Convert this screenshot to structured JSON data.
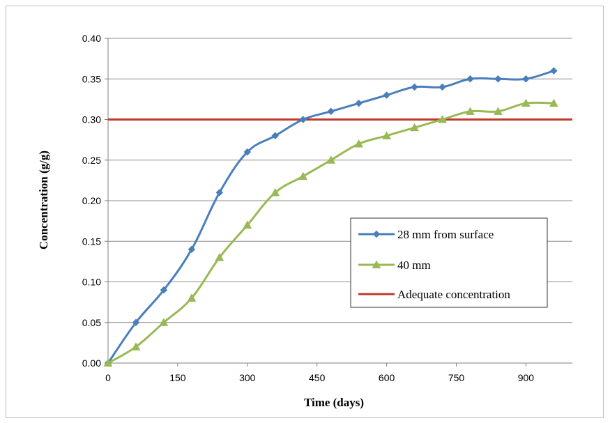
{
  "chart_data": {
    "type": "line",
    "title": "",
    "xlabel": "Time (days)",
    "ylabel": "Concentration (g/g)",
    "xlim": [
      0,
      1000
    ],
    "ylim": [
      0,
      0.4
    ],
    "xticks": [
      0,
      150,
      300,
      450,
      600,
      750,
      900
    ],
    "xtick_labels": [
      "0",
      "150",
      "300",
      "450",
      "600",
      "750",
      "900"
    ],
    "yticks": [
      0,
      0.05,
      0.1,
      0.15,
      0.2,
      0.25,
      0.3,
      0.35,
      0.4
    ],
    "ytick_labels": [
      "0.00",
      "0.05",
      "0.10",
      "0.15",
      "0.20",
      "0.25",
      "0.30",
      "0.35",
      "0.40"
    ],
    "grid": "horizontal",
    "legend_position": "right",
    "series": [
      {
        "name": "28 mm  from surface",
        "color": "#4a7ebb",
        "marker": "diamond",
        "x": [
          0,
          60,
          120,
          180,
          240,
          300,
          360,
          420,
          480,
          540,
          600,
          660,
          720,
          780,
          840,
          900,
          960
        ],
        "y": [
          0.0,
          0.05,
          0.09,
          0.14,
          0.21,
          0.26,
          0.28,
          0.3,
          0.31,
          0.32,
          0.33,
          0.34,
          0.34,
          0.35,
          0.35,
          0.35,
          0.36
        ]
      },
      {
        "name": "40 mm",
        "color": "#98b954",
        "marker": "triangle",
        "x": [
          0,
          60,
          120,
          180,
          240,
          300,
          360,
          420,
          480,
          540,
          600,
          660,
          720,
          780,
          840,
          900,
          960
        ],
        "y": [
          0.0,
          0.02,
          0.05,
          0.08,
          0.13,
          0.17,
          0.21,
          0.23,
          0.25,
          0.27,
          0.28,
          0.29,
          0.3,
          0.31,
          0.31,
          0.32,
          0.32
        ]
      }
    ],
    "reference_line": {
      "name": "Adequate concentration",
      "color": "#c0392b",
      "y": 0.3
    }
  }
}
